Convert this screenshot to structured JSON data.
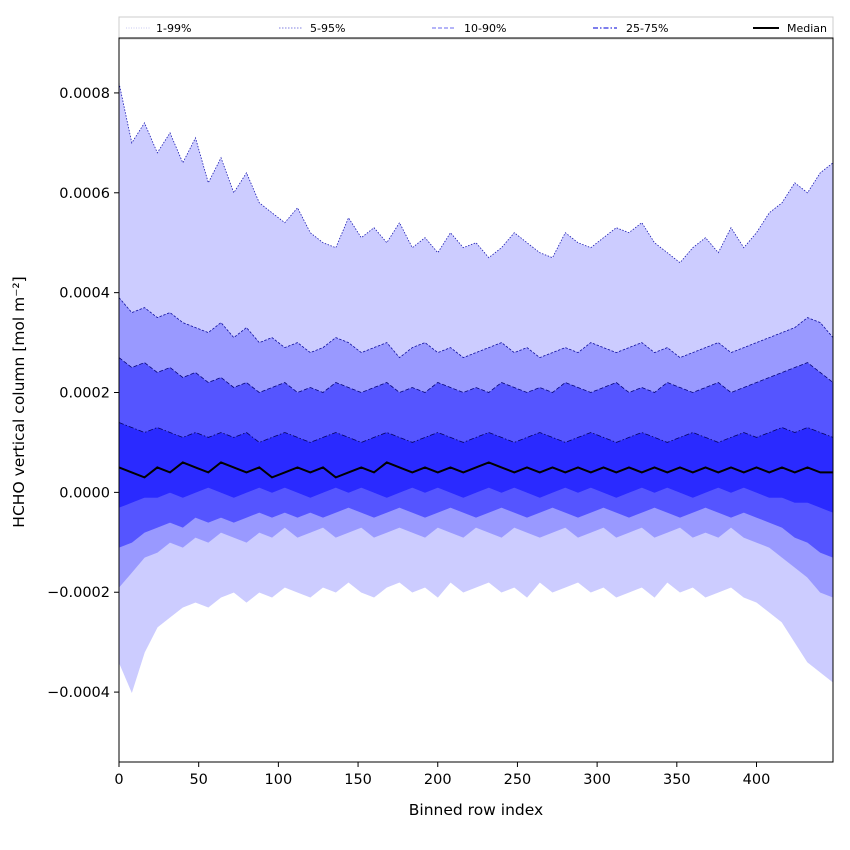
{
  "chart_data": {
    "type": "area",
    "title": "",
    "xlabel": "Binned row index",
    "ylabel": "HCHO vertical column [mol m⁻²]",
    "xlim": [
      0,
      448
    ],
    "ylim": [
      -0.00054,
      0.00091
    ],
    "x_ticks": [
      0,
      50,
      100,
      150,
      200,
      250,
      300,
      350,
      400
    ],
    "x_tick_labels": [
      "0",
      "50",
      "100",
      "150",
      "200",
      "250",
      "300",
      "350",
      "400"
    ],
    "y_ticks": [
      -0.0004,
      -0.0002,
      0.0,
      0.0002,
      0.0004,
      0.0006,
      0.0008
    ],
    "y_tick_labels": [
      "−0.0004",
      "−0.0002",
      "0.0000",
      "0.0002",
      "0.0004",
      "0.0006",
      "0.0008"
    ],
    "grid": false,
    "legend_placement": "top (above plot, full width)",
    "legend": [
      {
        "label": "1-99%",
        "style": "dotted",
        "color": "#c8c8f0"
      },
      {
        "label": "5-95%",
        "style": "dotted",
        "color": "#8080e0"
      },
      {
        "label": "10-90%",
        "style": "dashed",
        "color": "#6a6af0"
      },
      {
        "label": "25-75%",
        "style": "dashdot",
        "color": "#3030e0"
      },
      {
        "label": "Median",
        "style": "solid",
        "color": "#000000"
      }
    ],
    "x_step": 8,
    "x_start": 0,
    "bands": [
      {
        "name": "1-99%",
        "fill": "#ccccff",
        "edge": "#1a1ab0",
        "edge_dash": "1.5,1.5",
        "upper": [
          0.00082,
          0.0007,
          0.00074,
          0.00068,
          0.00072,
          0.00066,
          0.00071,
          0.00062,
          0.00067,
          0.0006,
          0.00064,
          0.00058,
          0.00056,
          0.00054,
          0.00057,
          0.00052,
          0.0005,
          0.00049,
          0.00055,
          0.00051,
          0.00053,
          0.0005,
          0.00054,
          0.00049,
          0.00051,
          0.00048,
          0.00052,
          0.00049,
          0.0005,
          0.00047,
          0.00049,
          0.00052,
          0.0005,
          0.00048,
          0.00047,
          0.00052,
          0.0005,
          0.00049,
          0.00051,
          0.00053,
          0.00052,
          0.00054,
          0.0005,
          0.00048,
          0.00046,
          0.00049,
          0.00051,
          0.00048,
          0.00053,
          0.00049,
          0.00052,
          0.00056,
          0.00058,
          0.00062,
          0.0006,
          0.00064,
          0.00066
        ],
        "lower": [
          -0.00034,
          -0.0004,
          -0.00032,
          -0.00027,
          -0.00025,
          -0.00023,
          -0.00022,
          -0.00023,
          -0.00021,
          -0.0002,
          -0.00022,
          -0.0002,
          -0.00021,
          -0.00019,
          -0.0002,
          -0.00021,
          -0.00019,
          -0.0002,
          -0.00018,
          -0.0002,
          -0.00021,
          -0.00019,
          -0.00018,
          -0.0002,
          -0.00019,
          -0.00021,
          -0.00018,
          -0.0002,
          -0.00019,
          -0.00018,
          -0.0002,
          -0.00019,
          -0.00021,
          -0.00018,
          -0.0002,
          -0.00019,
          -0.00018,
          -0.0002,
          -0.00019,
          -0.00021,
          -0.0002,
          -0.00019,
          -0.00021,
          -0.00018,
          -0.0002,
          -0.00019,
          -0.00021,
          -0.0002,
          -0.00019,
          -0.00021,
          -0.00022,
          -0.00024,
          -0.00026,
          -0.0003,
          -0.00034,
          -0.00036,
          -0.00038
        ]
      },
      {
        "name": "5-95%",
        "fill": "#9999ff",
        "edge": "#1010a0",
        "edge_dash": "2.5,1.5",
        "upper": [
          0.00039,
          0.00036,
          0.00037,
          0.00035,
          0.00036,
          0.00034,
          0.00033,
          0.00032,
          0.00034,
          0.00031,
          0.00033,
          0.0003,
          0.00031,
          0.00029,
          0.0003,
          0.00028,
          0.00029,
          0.00031,
          0.0003,
          0.00028,
          0.00029,
          0.0003,
          0.00027,
          0.00029,
          0.0003,
          0.00028,
          0.00029,
          0.00027,
          0.00028,
          0.00029,
          0.0003,
          0.00028,
          0.00029,
          0.00027,
          0.00028,
          0.00029,
          0.00028,
          0.0003,
          0.00029,
          0.00028,
          0.00029,
          0.0003,
          0.00028,
          0.00029,
          0.00027,
          0.00028,
          0.00029,
          0.0003,
          0.00028,
          0.00029,
          0.0003,
          0.00031,
          0.00032,
          0.00033,
          0.00035,
          0.00034,
          0.00031
        ],
        "lower": [
          -0.00019,
          -0.00016,
          -0.00013,
          -0.00012,
          -0.0001,
          -0.00011,
          -9e-05,
          -0.0001,
          -8e-05,
          -9e-05,
          -0.0001,
          -8e-05,
          -9e-05,
          -7e-05,
          -9e-05,
          -8e-05,
          -7e-05,
          -9e-05,
          -8e-05,
          -7e-05,
          -9e-05,
          -8e-05,
          -7e-05,
          -8e-05,
          -9e-05,
          -7e-05,
          -8e-05,
          -9e-05,
          -7e-05,
          -8e-05,
          -9e-05,
          -7e-05,
          -8e-05,
          -9e-05,
          -8e-05,
          -7e-05,
          -9e-05,
          -8e-05,
          -7e-05,
          -9e-05,
          -8e-05,
          -7e-05,
          -9e-05,
          -8e-05,
          -7e-05,
          -9e-05,
          -8e-05,
          -9e-05,
          -7e-05,
          -9e-05,
          -0.0001,
          -0.00011,
          -0.00013,
          -0.00015,
          -0.00017,
          -0.0002,
          -0.00021
        ]
      },
      {
        "name": "10-90%",
        "fill": "#5555ff",
        "edge": "#08087a",
        "edge_dash": "4,2",
        "upper": [
          0.00027,
          0.00025,
          0.00026,
          0.00024,
          0.00025,
          0.00023,
          0.00024,
          0.00022,
          0.00023,
          0.00021,
          0.00022,
          0.0002,
          0.00021,
          0.00022,
          0.0002,
          0.00021,
          0.0002,
          0.00022,
          0.00021,
          0.0002,
          0.00021,
          0.00022,
          0.0002,
          0.00021,
          0.0002,
          0.00022,
          0.00021,
          0.0002,
          0.00021,
          0.0002,
          0.00022,
          0.00021,
          0.0002,
          0.00021,
          0.0002,
          0.00022,
          0.00021,
          0.0002,
          0.00021,
          0.00022,
          0.0002,
          0.00021,
          0.0002,
          0.00022,
          0.00021,
          0.0002,
          0.00021,
          0.00022,
          0.0002,
          0.00021,
          0.00022,
          0.00023,
          0.00024,
          0.00025,
          0.00026,
          0.00024,
          0.00022
        ],
        "lower": [
          -0.00011,
          -0.0001,
          -8e-05,
          -7e-05,
          -6e-05,
          -7e-05,
          -5e-05,
          -6e-05,
          -5e-05,
          -6e-05,
          -5e-05,
          -4e-05,
          -5e-05,
          -4e-05,
          -5e-05,
          -4e-05,
          -5e-05,
          -4e-05,
          -3e-05,
          -4e-05,
          -5e-05,
          -4e-05,
          -3e-05,
          -4e-05,
          -5e-05,
          -4e-05,
          -3e-05,
          -4e-05,
          -5e-05,
          -4e-05,
          -3e-05,
          -4e-05,
          -5e-05,
          -4e-05,
          -3e-05,
          -4e-05,
          -5e-05,
          -4e-05,
          -3e-05,
          -4e-05,
          -5e-05,
          -4e-05,
          -3e-05,
          -4e-05,
          -5e-05,
          -4e-05,
          -3e-05,
          -4e-05,
          -5e-05,
          -4e-05,
          -5e-05,
          -6e-05,
          -7e-05,
          -9e-05,
          -0.0001,
          -0.00012,
          -0.00013
        ]
      },
      {
        "name": "25-75%",
        "fill": "#2a2aff",
        "edge": "#050560",
        "edge_dash": "5,2,1.5,2",
        "upper": [
          0.00014,
          0.00013,
          0.00012,
          0.00013,
          0.00012,
          0.00011,
          0.00012,
          0.00011,
          0.00012,
          0.00011,
          0.00012,
          0.0001,
          0.00011,
          0.00012,
          0.00011,
          0.0001,
          0.00011,
          0.00012,
          0.00011,
          0.0001,
          0.00011,
          0.00012,
          0.00011,
          0.0001,
          0.00011,
          0.00012,
          0.00011,
          0.0001,
          0.00011,
          0.00012,
          0.00011,
          0.0001,
          0.00011,
          0.00012,
          0.00011,
          0.0001,
          0.00011,
          0.00012,
          0.00011,
          0.0001,
          0.00011,
          0.00012,
          0.00011,
          0.0001,
          0.00011,
          0.00012,
          0.00011,
          0.0001,
          0.00011,
          0.00012,
          0.00011,
          0.00012,
          0.00013,
          0.00012,
          0.00013,
          0.00012,
          0.00011
        ],
        "lower": [
          -3e-05,
          -2e-05,
          -1e-05,
          -1e-05,
          0.0,
          -1e-05,
          0.0,
          1e-05,
          0.0,
          -1e-05,
          0.0,
          1e-05,
          0.0,
          1e-05,
          0.0,
          -1e-05,
          0.0,
          1e-05,
          0.0,
          1e-05,
          0.0,
          -1e-05,
          0.0,
          1e-05,
          0.0,
          1e-05,
          0.0,
          -1e-05,
          0.0,
          1e-05,
          0.0,
          1e-05,
          0.0,
          -1e-05,
          0.0,
          1e-05,
          0.0,
          1e-05,
          0.0,
          -1e-05,
          0.0,
          1e-05,
          0.0,
          1e-05,
          0.0,
          -1e-05,
          0.0,
          1e-05,
          0.0,
          1e-05,
          0.0,
          -1e-05,
          -1e-05,
          -2e-05,
          -2e-05,
          -3e-05,
          -4e-05
        ]
      }
    ],
    "median": {
      "name": "Median",
      "color": "#000000",
      "values": [
        5e-05,
        4e-05,
        3e-05,
        5e-05,
        4e-05,
        6e-05,
        5e-05,
        4e-05,
        6e-05,
        5e-05,
        4e-05,
        5e-05,
        3e-05,
        4e-05,
        5e-05,
        4e-05,
        5e-05,
        3e-05,
        4e-05,
        5e-05,
        4e-05,
        6e-05,
        5e-05,
        4e-05,
        5e-05,
        4e-05,
        5e-05,
        4e-05,
        5e-05,
        6e-05,
        5e-05,
        4e-05,
        5e-05,
        4e-05,
        5e-05,
        4e-05,
        5e-05,
        4e-05,
        5e-05,
        4e-05,
        5e-05,
        4e-05,
        5e-05,
        4e-05,
        5e-05,
        4e-05,
        5e-05,
        4e-05,
        5e-05,
        4e-05,
        5e-05,
        4e-05,
        5e-05,
        4e-05,
        5e-05,
        4e-05,
        4e-05
      ]
    }
  }
}
